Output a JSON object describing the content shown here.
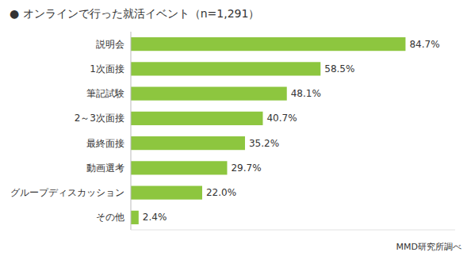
{
  "chart_data": {
    "type": "bar",
    "orientation": "horizontal",
    "title": "● オンラインで行った就活イベント（n=1,291）",
    "categories": [
      "説明会",
      "1次面接",
      "筆記試験",
      "2～3次面接",
      "最終面接",
      "動画選考",
      "グループディスカッション",
      "その他"
    ],
    "values": [
      84.7,
      58.5,
      48.1,
      40.7,
      35.2,
      29.7,
      22.0,
      2.4
    ],
    "value_labels": [
      "84.7%",
      "58.5%",
      "48.1%",
      "40.7%",
      "35.2%",
      "29.7%",
      "22.0%",
      "2.4%"
    ],
    "data_labels": true,
    "color": "#8DC63F",
    "xlim": [
      0,
      100
    ],
    "tick_labels": "y",
    "grid": false,
    "annotations": [
      "MMD研究所調べ"
    ]
  }
}
